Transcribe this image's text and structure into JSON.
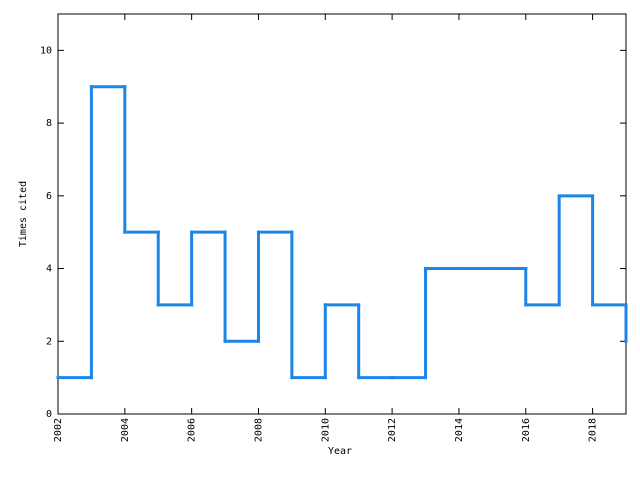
{
  "chart_data": {
    "type": "step",
    "x_label": "Year",
    "y_label": "Times cited",
    "x": [
      2002,
      2003,
      2004,
      2005,
      2006,
      2007,
      2008,
      2009,
      2010,
      2011,
      2012,
      2013,
      2014,
      2015,
      2016,
      2017,
      2018,
      2019
    ],
    "values": [
      1,
      9,
      5,
      3,
      5,
      2,
      5,
      1,
      3,
      1,
      1,
      4,
      4,
      4,
      3,
      6,
      3,
      2
    ],
    "color": "#1c86e8",
    "xlim": [
      2002,
      2019
    ],
    "xticks": [
      2002,
      2004,
      2006,
      2008,
      2010,
      2012,
      2014,
      2016,
      2018
    ],
    "ylim": [
      0,
      11
    ],
    "yticks": [
      0,
      2,
      4,
      6,
      8,
      10
    ]
  }
}
